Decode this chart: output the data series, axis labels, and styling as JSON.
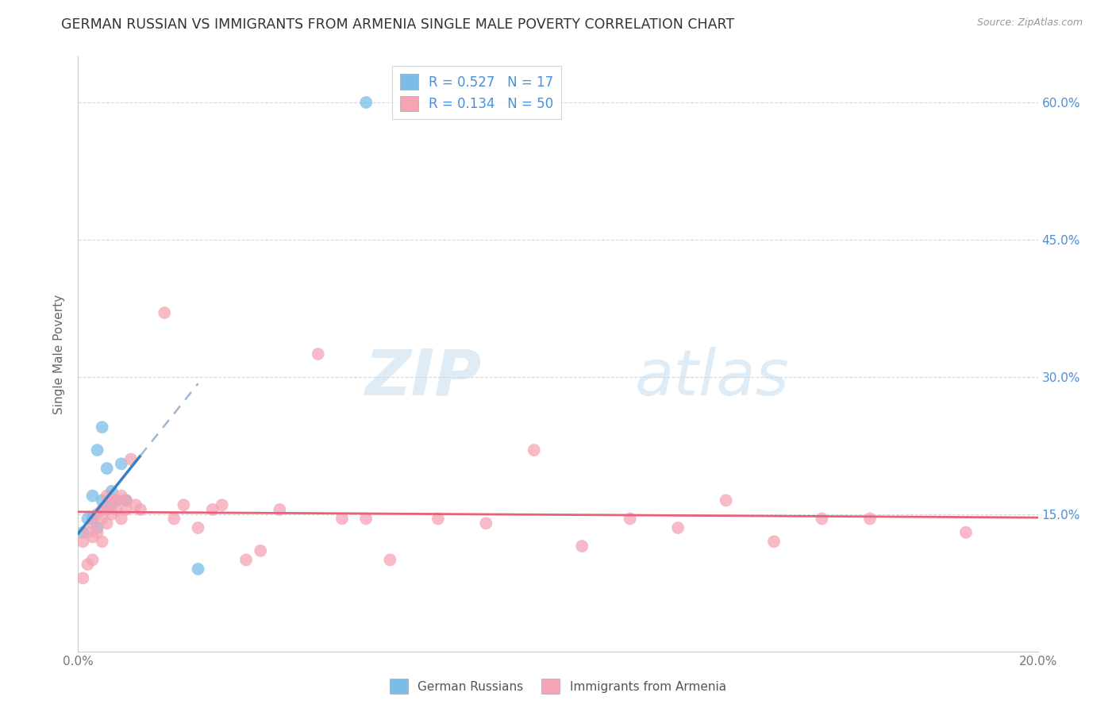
{
  "title": "GERMAN RUSSIAN VS IMMIGRANTS FROM ARMENIA SINGLE MALE POVERTY CORRELATION CHART",
  "source": "Source: ZipAtlas.com",
  "ylabel": "Single Male Poverty",
  "xlim": [
    0.0,
    0.2
  ],
  "ylim": [
    0.0,
    0.65
  ],
  "blue_color": "#7bbde8",
  "pink_color": "#f4a4b4",
  "blue_line_color": "#3a7fc1",
  "pink_line_color": "#e8607a",
  "legend_text_color": "#4a90d9",
  "R_blue": 0.527,
  "N_blue": 17,
  "R_pink": 0.134,
  "N_pink": 50,
  "german_russian_x": [
    0.001,
    0.002,
    0.003,
    0.003,
    0.004,
    0.004,
    0.005,
    0.005,
    0.006,
    0.006,
    0.007,
    0.007,
    0.008,
    0.009,
    0.01,
    0.025,
    0.06
  ],
  "german_russian_y": [
    0.13,
    0.145,
    0.145,
    0.17,
    0.135,
    0.22,
    0.165,
    0.245,
    0.2,
    0.155,
    0.175,
    0.16,
    0.165,
    0.205,
    0.165,
    0.09,
    0.6
  ],
  "armenia_x": [
    0.001,
    0.001,
    0.002,
    0.002,
    0.003,
    0.003,
    0.003,
    0.004,
    0.004,
    0.005,
    0.005,
    0.005,
    0.006,
    0.006,
    0.006,
    0.007,
    0.007,
    0.008,
    0.008,
    0.009,
    0.009,
    0.01,
    0.01,
    0.011,
    0.012,
    0.013,
    0.018,
    0.02,
    0.022,
    0.025,
    0.028,
    0.03,
    0.035,
    0.038,
    0.042,
    0.05,
    0.055,
    0.06,
    0.065,
    0.075,
    0.085,
    0.095,
    0.105,
    0.115,
    0.125,
    0.135,
    0.145,
    0.155,
    0.165,
    0.185
  ],
  "armenia_y": [
    0.12,
    0.08,
    0.13,
    0.095,
    0.14,
    0.125,
    0.1,
    0.15,
    0.13,
    0.145,
    0.155,
    0.12,
    0.14,
    0.155,
    0.17,
    0.165,
    0.15,
    0.155,
    0.165,
    0.17,
    0.145,
    0.155,
    0.165,
    0.21,
    0.16,
    0.155,
    0.37,
    0.145,
    0.16,
    0.135,
    0.155,
    0.16,
    0.1,
    0.11,
    0.155,
    0.325,
    0.145,
    0.145,
    0.1,
    0.145,
    0.14,
    0.22,
    0.115,
    0.145,
    0.135,
    0.165,
    0.12,
    0.145,
    0.145,
    0.13
  ],
  "background_color": "#ffffff",
  "grid_color": "#d8d8d8",
  "blue_label": "German Russians",
  "pink_label": "Immigrants from Armenia"
}
